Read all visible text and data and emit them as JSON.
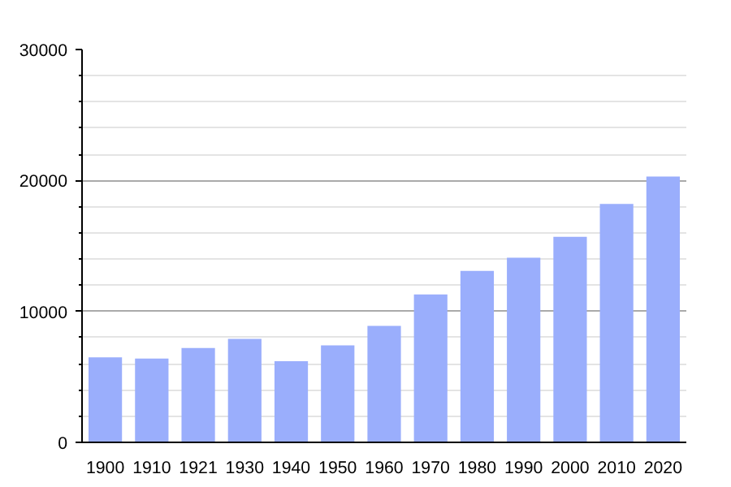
{
  "chart_data": {
    "type": "bar",
    "categories": [
      "1900",
      "1910",
      "1921",
      "1930",
      "1940",
      "1950",
      "1960",
      "1970",
      "1980",
      "1990",
      "2000",
      "2010",
      "2020"
    ],
    "values": [
      6500,
      6400,
      7200,
      7900,
      6200,
      7400,
      8900,
      11300,
      13100,
      14100,
      15700,
      18200,
      20300
    ],
    "color": "#9aaefc",
    "ylim": [
      0,
      30000
    ],
    "yticks": [
      0,
      10000,
      20000,
      30000
    ],
    "grid": "y"
  }
}
